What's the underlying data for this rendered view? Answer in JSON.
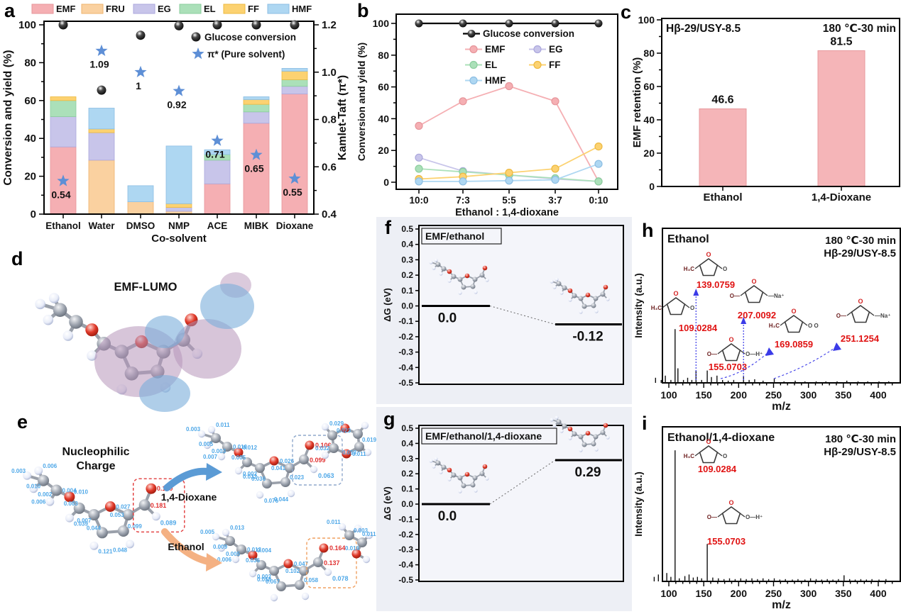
{
  "panels": {
    "a": {
      "letter": "a"
    },
    "b": {
      "letter": "b"
    },
    "c": {
      "letter": "c"
    },
    "d": {
      "letter": "d",
      "title": "EMF-LUMO"
    },
    "e": {
      "letter": "e",
      "title_lines": [
        "Nucleophilic",
        "Charge"
      ],
      "arrow_dioxane": "1,4-Dioxane",
      "arrow_ethanol": "Ethanol",
      "clusters": {
        "reactant": {
          "boxed": {
            "o": "0.160",
            "c": "0.181",
            "h": "0.089"
          },
          "charges": [
            "0.006",
            "0.003",
            "0.002",
            "0.010",
            "0.004",
            "0.006",
            "0.010",
            "0.003",
            "0.039",
            "0.007",
            "0.027",
            "0.053",
            "0.099",
            "0.044",
            "0.121",
            "0.048",
            "0.062"
          ]
        },
        "dioxane_product": {
          "boxed": {
            "o": "0.106",
            "c": "0.099",
            "h": "0.063"
          },
          "charges": [
            "0.011",
            "0.003",
            "0.003",
            "0.005",
            "0.010",
            "0.007",
            "0.012",
            "0.005",
            "0.032",
            "0.002",
            "0.026",
            "0.041",
            "0.023",
            "0.036",
            "0.076",
            "0.044",
            "0.049"
          ],
          "solvent_charges": [
            "0.023",
            "0.029",
            "0.019",
            "0.053",
            "0.011",
            "0.032"
          ]
        },
        "ethanol_product": {
          "boxed": {
            "o": "0.164",
            "c": "0.137",
            "h": "0.078"
          },
          "charges": [
            "0.013",
            "0.005",
            "0.005",
            "0.009",
            "0.013",
            "0.006",
            "0.004",
            "0.036",
            "0.058",
            "0.002",
            "0.047",
            "0.102",
            "0.058",
            "0.067"
          ],
          "solvent_charges": [
            "0.003",
            "0.011",
            "0.011",
            "0.016"
          ]
        }
      }
    },
    "f": {
      "letter": "f"
    },
    "g": {
      "letter": "g"
    },
    "h": {
      "letter": "h"
    },
    "i": {
      "letter": "i"
    }
  },
  "chart_data": [
    {
      "panel": "a",
      "type": "bar",
      "stacked": true,
      "title": "",
      "xlabel": "Co-solvent",
      "ylabel_left": "Conversion and yield (%)",
      "ylabel_right": "Kamlet-Taft (π*)",
      "ylim_left": [
        0,
        100
      ],
      "ylim_right": [
        0.4,
        1.2
      ],
      "categories": [
        "Ethanol",
        "Water",
        "DMSO",
        "NMP",
        "ACE",
        "MIBK",
        "Dioxane"
      ],
      "series": [
        {
          "name": "EMF",
          "fill": "#F5AFB3",
          "edge": "#E6959A",
          "values": [
            35.5,
            0,
            0,
            0,
            16,
            48,
            63.5
          ]
        },
        {
          "name": "FRU",
          "fill": "#FAD1A0",
          "edge": "#EFB36E",
          "values": [
            0,
            28.5,
            6.5,
            1.5,
            0,
            0,
            0
          ]
        },
        {
          "name": "EG",
          "fill": "#C8C5EA",
          "edge": "#ABA7DC",
          "values": [
            16,
            14.5,
            0,
            2,
            12.5,
            6,
            4
          ]
        },
        {
          "name": "EL",
          "fill": "#ABE0B9",
          "edge": "#8BCE9D",
          "values": [
            8.5,
            0,
            0,
            0,
            3,
            4,
            3.5
          ]
        },
        {
          "name": "FF",
          "fill": "#FCD271",
          "edge": "#EDB93F",
          "values": [
            2,
            2,
            0,
            2,
            0,
            2.5,
            4.5
          ]
        },
        {
          "name": "HMF",
          "fill": "#AED7F2",
          "edge": "#8CBEE3",
          "values": [
            0,
            11,
            8.5,
            30.5,
            2.5,
            1.5,
            1.5
          ]
        }
      ],
      "scatter": [
        {
          "name": "Glucose conversion",
          "marker": "sphere",
          "axis": "left",
          "values": [
            100,
            65.5,
            94.5,
            99.5,
            100,
            100,
            100
          ]
        },
        {
          "name": "π* (Pure solvent)",
          "marker": "star",
          "color": "#5E8FD6",
          "axis": "right",
          "values": [
            0.54,
            1.09,
            1.0,
            0.92,
            0.71,
            0.65,
            0.55
          ],
          "labels": [
            "0.54",
            "1.09",
            "1",
            "0.92",
            "0.71",
            "0.65",
            "0.55"
          ]
        }
      ]
    },
    {
      "panel": "b",
      "type": "line",
      "x_categories": [
        "10:0",
        "7:3",
        "5:5",
        "3:7",
        "0:10"
      ],
      "xlabel": "Ethanol : 1,4-dioxane",
      "ylabel": "Conversion and yield (%)",
      "ylim": [
        0,
        100
      ],
      "series": [
        {
          "name": "Glucose conversion",
          "fill": "#1a1a1a",
          "edge": "#000000",
          "values": [
            100,
            100,
            100,
            100,
            100
          ]
        },
        {
          "name": "EMF",
          "fill": "#F5AFB3",
          "edge": "#E6959A",
          "values": [
            35.5,
            51,
            60.5,
            51,
            0.5
          ]
        },
        {
          "name": "EG",
          "fill": "#C8C5EA",
          "edge": "#ABA7DC",
          "values": [
            15.5,
            7,
            4.5,
            2,
            0.5
          ]
        },
        {
          "name": "EL",
          "fill": "#ABE0B9",
          "edge": "#8BCE9D",
          "values": [
            8.5,
            6.5,
            4.5,
            2.5,
            0.5
          ]
        },
        {
          "name": "FF",
          "fill": "#FCD271",
          "edge": "#EDB93F",
          "values": [
            2,
            3.5,
            6,
            8.5,
            22.5
          ]
        },
        {
          "name": "HMF",
          "fill": "#AED7F2",
          "edge": "#8CBEE3",
          "values": [
            0.5,
            0.5,
            1,
            1.5,
            11.5
          ]
        }
      ]
    },
    {
      "panel": "c",
      "type": "bar",
      "categories": [
        "Ethanol",
        "1,4-Dioxane"
      ],
      "values": [
        46.6,
        81.5
      ],
      "value_labels": [
        "46.6",
        "81.5"
      ],
      "bar_fill": "#F5B5B8",
      "bar_edge": "#E89A9E",
      "ylabel": "EMF retention (%)",
      "ylim": [
        0,
        100
      ],
      "annotation_left": "Hβ-29/USY-8.5",
      "annotation_right": "180 ℃-30 min"
    },
    {
      "panel": "f",
      "type": "line",
      "subtype": "energy-diagram",
      "title": "EMF/ethanol",
      "ylabel": "ΔG (eV)",
      "ylim": [
        -0.5,
        0.5
      ],
      "levels": [
        {
          "value": 0.0,
          "label": "0.0"
        },
        {
          "value": -0.12,
          "label": "-0.12"
        }
      ]
    },
    {
      "panel": "g",
      "type": "line",
      "subtype": "energy-diagram",
      "title": "EMF/ethanol/1,4-dioxane",
      "ylabel": "ΔG (eV)",
      "ylim": [
        -0.5,
        0.5
      ],
      "levels": [
        {
          "value": 0.0,
          "label": "0.0"
        },
        {
          "value": 0.29,
          "label": "0.29"
        }
      ]
    },
    {
      "panel": "h",
      "type": "bar",
      "subtype": "mass-spectrum",
      "title": "Ethanol",
      "condition_line1": "180 ℃-30 min",
      "condition_line2": "Hβ-29/USY-8.5",
      "xlabel": "m/z",
      "ylabel": "Intensity (a.u.)",
      "xlim": [
        62,
        440
      ],
      "xticks": [
        100,
        150,
        200,
        250,
        300,
        350,
        400
      ],
      "peaks": [
        [
          81,
          0.035
        ],
        [
          89,
          0.02
        ],
        [
          95,
          0.05
        ],
        [
          103,
          0.02
        ],
        [
          109,
          0.37
        ],
        [
          113,
          0.1
        ],
        [
          121,
          0.02
        ],
        [
          127,
          0.035
        ],
        [
          133,
          0.02
        ],
        [
          139,
          0.085
        ],
        [
          147,
          0.02
        ],
        [
          155,
          0.085
        ],
        [
          161,
          0.04
        ],
        [
          169,
          0.05
        ],
        [
          177,
          0.02
        ],
        [
          185,
          0.015
        ],
        [
          193,
          0.02
        ],
        [
          207,
          0.05
        ],
        [
          215,
          0.02
        ],
        [
          223,
          0.025
        ],
        [
          235,
          0.015
        ],
        [
          251,
          0.03
        ],
        [
          265,
          0.01
        ],
        [
          281,
          0.015
        ],
        [
          295,
          0.01
        ],
        [
          311,
          0.01
        ],
        [
          325,
          0.01
        ],
        [
          341,
          0.01
        ],
        [
          355,
          0.015
        ],
        [
          371,
          0.01
        ],
        [
          385,
          0.01
        ],
        [
          401,
          0.01
        ],
        [
          415,
          0.01
        ]
      ],
      "peak_labels": [
        "109.0284",
        "139.0759",
        "155.0703",
        "169.0859",
        "207.0092",
        "251.1254"
      ],
      "structures": [
        {
          "left": "H₃C",
          "right": "O"
        },
        {
          "left": "H₃C",
          "right": "O"
        },
        {
          "left": "O—",
          "right": "—Na⁺"
        },
        {
          "left": "H₃C",
          "right": "O O"
        },
        {
          "left": "O—",
          "right": "—Na⁺"
        },
        {
          "left": "O—",
          "right": "O—H⁺"
        }
      ]
    },
    {
      "panel": "i",
      "type": "bar",
      "subtype": "mass-spectrum",
      "title": "Ethanol/1,4-dioxane",
      "condition_line1": "180 ℃-30 min",
      "condition_line2": "Hβ-29/USY-8.5",
      "xlabel": "m/z",
      "ylabel": "Intensity (a.u.)",
      "xlim": [
        62,
        440
      ],
      "xticks": [
        100,
        150,
        200,
        250,
        300,
        350,
        400
      ],
      "peaks": [
        [
          79,
          0.03
        ],
        [
          85,
          0.045
        ],
        [
          91,
          0.025
        ],
        [
          97,
          0.055
        ],
        [
          103,
          0.03
        ],
        [
          109,
          0.86
        ],
        [
          115,
          0.02
        ],
        [
          123,
          0.035
        ],
        [
          129,
          0.045
        ],
        [
          135,
          0.025
        ],
        [
          141,
          0.03
        ],
        [
          147,
          0.02
        ],
        [
          155,
          0.245
        ],
        [
          163,
          0.025
        ],
        [
          171,
          0.02
        ],
        [
          179,
          0.015
        ],
        [
          187,
          0.02
        ],
        [
          195,
          0.015
        ],
        [
          203,
          0.02
        ],
        [
          211,
          0.015
        ],
        [
          219,
          0.02
        ],
        [
          227,
          0.015
        ],
        [
          235,
          0.02
        ],
        [
          243,
          0.015
        ],
        [
          251,
          0.02
        ],
        [
          259,
          0.012
        ],
        [
          267,
          0.015
        ],
        [
          277,
          0.012
        ],
        [
          285,
          0.015
        ],
        [
          295,
          0.012
        ],
        [
          303,
          0.02
        ],
        [
          311,
          0.015
        ],
        [
          319,
          0.012
        ],
        [
          327,
          0.015
        ],
        [
          335,
          0.012
        ],
        [
          343,
          0.015
        ],
        [
          351,
          0.04
        ],
        [
          359,
          0.015
        ],
        [
          367,
          0.012
        ],
        [
          375,
          0.015
        ],
        [
          383,
          0.012
        ],
        [
          391,
          0.015
        ],
        [
          401,
          0.012
        ],
        [
          411,
          0.015
        ]
      ],
      "peak_labels": [
        "109.0284",
        "155.0703"
      ],
      "structures": [
        {
          "left": "H₃C",
          "right": "O"
        },
        {
          "left": "O—",
          "right": "O—H⁺"
        }
      ]
    }
  ]
}
